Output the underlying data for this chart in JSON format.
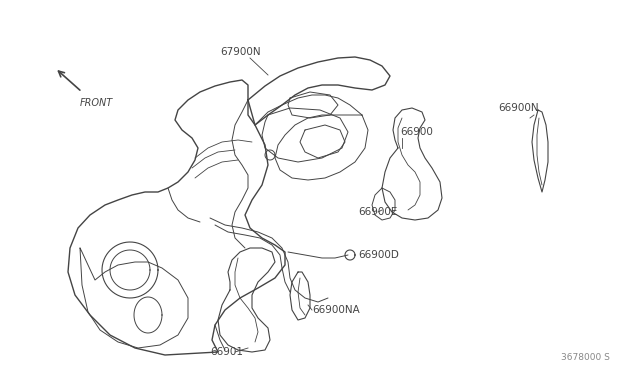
{
  "bg_color": "#ffffff",
  "line_color": "#444444",
  "text_color": "#444444",
  "part_number_bottom_right": "3678000 S",
  "figsize": [
    6.4,
    3.72
  ],
  "dpi": 100,
  "xlim": [
    0,
    640
  ],
  "ylim": [
    0,
    372
  ]
}
